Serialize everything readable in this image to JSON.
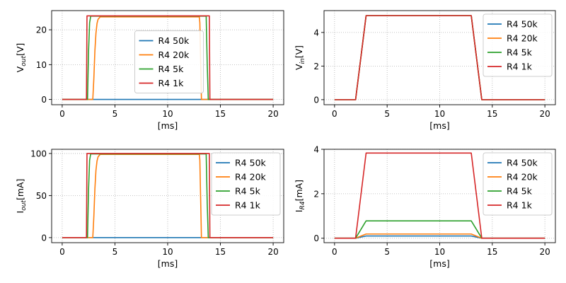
{
  "colors": {
    "R4 50k": "#1f77b4",
    "R4 20k": "#ff7f0e",
    "R4 5k": "#2ca02c",
    "R4 1k": "#d62728"
  },
  "chart_data": [
    {
      "type": "line",
      "id": "vout",
      "ylabel": {
        "main": "V",
        "sub": "out",
        "unit": "[V]"
      },
      "xlabel": "[ms]",
      "xlim": [
        -1,
        21
      ],
      "ylim": [
        -1.5,
        25.5
      ],
      "xticks": [
        0,
        5,
        10,
        15,
        20
      ],
      "yticks": [
        0,
        10,
        20
      ],
      "grid": true,
      "legend_position": "center",
      "series": [
        {
          "name": "R4 50k",
          "x": [
            0,
            20
          ],
          "y": [
            0,
            0
          ]
        },
        {
          "name": "R4 20k",
          "x": [
            0,
            2.9,
            3.0,
            3.1,
            3.2,
            3.3,
            3.4,
            3.6,
            13.0,
            13.05,
            13.2,
            13.3,
            13.5,
            20
          ],
          "y": [
            0,
            0,
            6,
            14,
            19,
            21.8,
            23,
            23.7,
            23.7,
            22,
            0,
            0,
            0,
            0
          ]
        },
        {
          "name": "R4 5k",
          "x": [
            0,
            2.4,
            2.5,
            2.6,
            2.7,
            13.65,
            13.75,
            13.85,
            20
          ],
          "y": [
            0,
            0,
            14,
            22,
            23.9,
            23.9,
            10,
            0,
            0
          ]
        },
        {
          "name": "R4 1k",
          "x": [
            0,
            2.3,
            2.35,
            13.95,
            14.0,
            20
          ],
          "y": [
            0,
            0,
            24,
            24,
            0,
            0
          ]
        }
      ]
    },
    {
      "type": "line",
      "id": "vin",
      "ylabel": {
        "main": "V",
        "sub": "in",
        "unit": "[V]"
      },
      "xlabel": "[ms]",
      "xlim": [
        -1,
        21
      ],
      "ylim": [
        -0.3,
        5.3
      ],
      "xticks": [
        0,
        5,
        10,
        15,
        20
      ],
      "yticks": [
        0,
        2,
        4
      ],
      "grid": true,
      "legend_position": "top-right",
      "series": [
        {
          "name": "R4 50k",
          "x": [
            0,
            2,
            3,
            13,
            14,
            20
          ],
          "y": [
            0,
            0,
            5,
            5,
            0,
            0
          ]
        },
        {
          "name": "R4 20k",
          "x": [
            0,
            2,
            3,
            13,
            14,
            20
          ],
          "y": [
            0,
            0,
            5,
            5,
            0,
            0
          ]
        },
        {
          "name": "R4 5k",
          "x": [
            0,
            2,
            3,
            13,
            14,
            20
          ],
          "y": [
            0,
            0,
            5,
            5,
            0,
            0
          ]
        },
        {
          "name": "R4 1k",
          "x": [
            0,
            2,
            3,
            13,
            14,
            20
          ],
          "y": [
            0,
            0,
            5,
            5,
            0,
            0
          ]
        }
      ]
    },
    {
      "type": "line",
      "id": "iout",
      "ylabel": {
        "main": "I",
        "sub": "out",
        "unit": "[mA]"
      },
      "xlabel": "[ms]",
      "xlim": [
        -1,
        21
      ],
      "ylim": [
        -6,
        105
      ],
      "xticks": [
        0,
        5,
        10,
        15,
        20
      ],
      "yticks": [
        0,
        50,
        100
      ],
      "grid": true,
      "legend_position": "top-right",
      "series": [
        {
          "name": "R4 50k",
          "x": [
            0,
            20
          ],
          "y": [
            0,
            0
          ]
        },
        {
          "name": "R4 20k",
          "x": [
            0,
            2.9,
            3.0,
            3.1,
            3.2,
            3.3,
            3.4,
            3.6,
            13.0,
            13.05,
            13.2,
            13.3,
            13.5,
            20
          ],
          "y": [
            0,
            0,
            25,
            58,
            80,
            91,
            96,
            99,
            99,
            92,
            0,
            0,
            0,
            0
          ]
        },
        {
          "name": "R4 5k",
          "x": [
            0,
            2.4,
            2.5,
            2.6,
            2.7,
            13.65,
            13.75,
            13.85,
            20
          ],
          "y": [
            0,
            0,
            58,
            92,
            99.5,
            99.5,
            40,
            0,
            0
          ]
        },
        {
          "name": "R4 1k",
          "x": [
            0,
            2.3,
            2.35,
            13.95,
            14.0,
            20
          ],
          "y": [
            0,
            0,
            100,
            100,
            0,
            0
          ]
        }
      ]
    },
    {
      "type": "line",
      "id": "ir4",
      "ylabel": {
        "main": "I",
        "sub": "R4",
        "unit": "[mA]"
      },
      "xlabel": "[ms]",
      "xlim": [
        -1,
        21
      ],
      "ylim": [
        -0.2,
        4.0
      ],
      "xticks": [
        0,
        5,
        10,
        15,
        20
      ],
      "yticks": [
        0,
        2,
        4
      ],
      "grid": true,
      "legend_position": "top-right",
      "series": [
        {
          "name": "R4 50k",
          "x": [
            0,
            2,
            3,
            13,
            14,
            20
          ],
          "y": [
            0,
            0,
            0.1,
            0.1,
            0,
            0
          ]
        },
        {
          "name": "R4 20k",
          "x": [
            0,
            2,
            3,
            13,
            14,
            20
          ],
          "y": [
            0,
            0,
            0.19,
            0.19,
            0,
            0
          ]
        },
        {
          "name": "R4 5k",
          "x": [
            0,
            2,
            3,
            13,
            14,
            20
          ],
          "y": [
            0,
            0,
            0.78,
            0.78,
            0,
            0
          ]
        },
        {
          "name": "R4 1k",
          "x": [
            0,
            2,
            3,
            13,
            14,
            20
          ],
          "y": [
            0,
            0,
            3.83,
            3.83,
            0,
            0
          ]
        }
      ]
    }
  ]
}
